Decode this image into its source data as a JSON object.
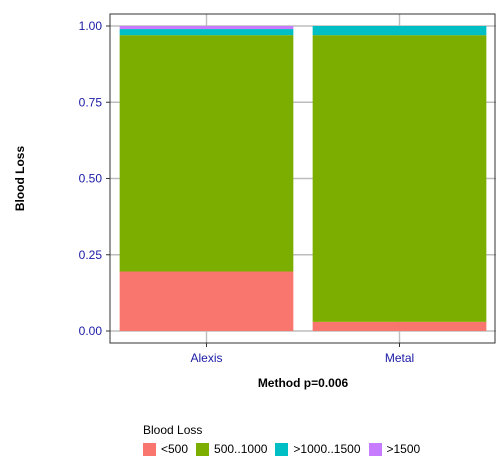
{
  "chart_data": {
    "type": "bar",
    "stacked": true,
    "normalized": true,
    "categories": [
      "Alexis",
      "Metal"
    ],
    "series": [
      {
        "name": "<500",
        "color": "#F8766D",
        "values": [
          0.195,
          0.03
        ]
      },
      {
        "name": "500..1000",
        "color": "#7CAE00",
        "values": [
          0.775,
          0.94
        ]
      },
      {
        "name": ">1000..1500",
        "color": "#00BFC4",
        "values": [
          0.02,
          0.03
        ]
      },
      {
        "name": ">1500",
        "color": "#C77CFF",
        "values": [
          0.01,
          0.0
        ]
      }
    ],
    "xlabel": "Method p=0.006",
    "ylabel": "Blood Loss",
    "ylim": [
      0,
      1
    ],
    "yticks": [
      "0.00",
      "0.25",
      "0.50",
      "0.75",
      "1.00"
    ],
    "grid": true,
    "legend": {
      "title": "Blood Loss",
      "position": "bottom"
    },
    "tick_label_color": "#1a1aa6"
  }
}
